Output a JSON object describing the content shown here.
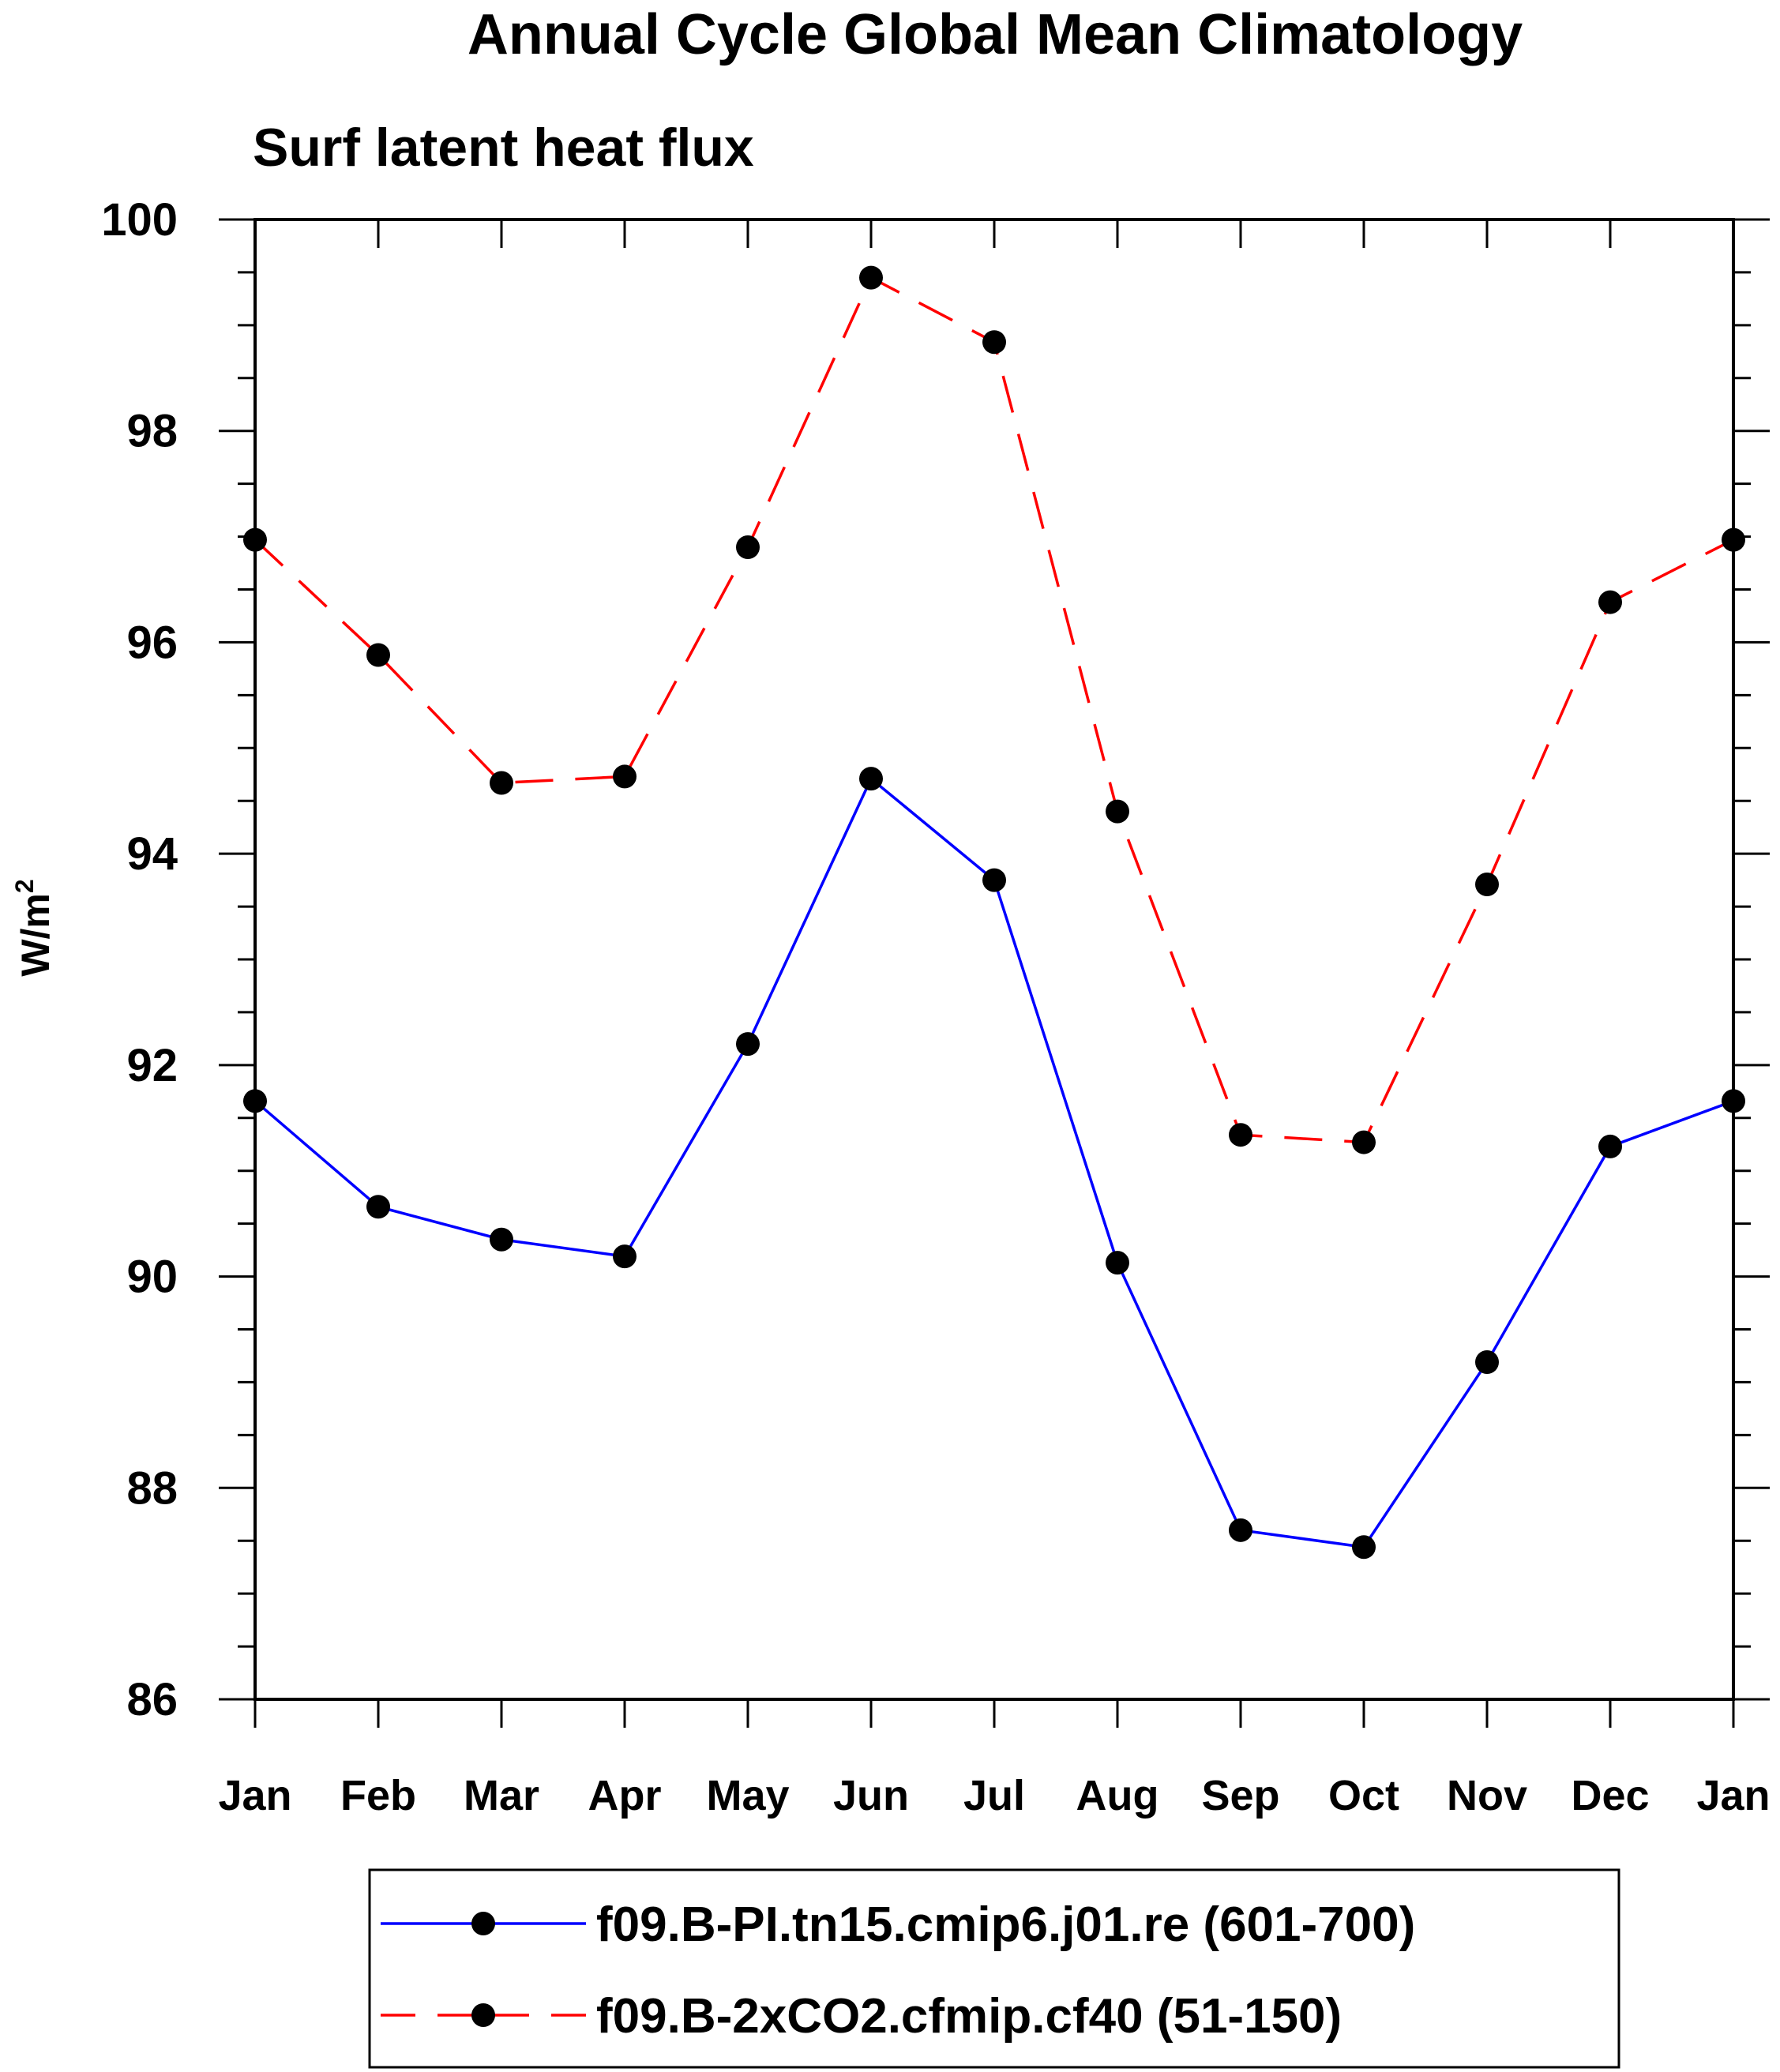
{
  "chart_data": {
    "type": "line",
    "title": "Annual Cycle Global Mean Climatology",
    "subtitle": "Surf latent heat flux",
    "ylabel_base": "W/m",
    "ylabel_sup": "2",
    "categories": [
      "Jan",
      "Feb",
      "Mar",
      "Apr",
      "May",
      "Jun",
      "Jul",
      "Aug",
      "Sep",
      "Oct",
      "Nov",
      "Dec",
      "Jan"
    ],
    "ylim": [
      86,
      100
    ],
    "yticks": [
      "86",
      "88",
      "90",
      "92",
      "94",
      "96",
      "98",
      "100"
    ],
    "grid": false,
    "legend_position": "bottom",
    "series": [
      {
        "name": "f09.B-PI.tn15.cmip6.j01.re (601-700)",
        "color": "#0000ff",
        "dash": "solid",
        "values": [
          91.66,
          90.66,
          90.35,
          90.19,
          92.2,
          94.71,
          93.75,
          90.13,
          87.6,
          87.44,
          89.19,
          91.23,
          91.66
        ]
      },
      {
        "name": "f09.B-2xCO2.cfmip.cf40 (51-150)",
        "color": "#ff0000",
        "dash": "dashed",
        "values": [
          96.97,
          95.88,
          94.67,
          94.73,
          96.9,
          99.45,
          98.84,
          94.4,
          91.34,
          91.27,
          93.71,
          96.38,
          96.97
        ]
      }
    ]
  }
}
